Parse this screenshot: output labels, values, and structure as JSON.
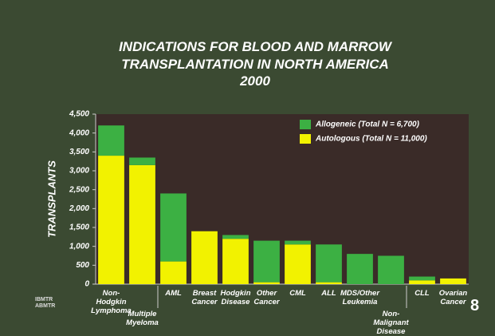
{
  "chart_data": {
    "type": "stacked-bar",
    "title": "INDICATIONS FOR BLOOD AND MARROW TRANSPLANTATION IN NORTH AMERICA",
    "subtitle": "2000",
    "y_label": "TRANSPLANTS",
    "categories": [
      "Non-Hodgkin Lymphoma",
      "Multiple Myeloma",
      "AML",
      "Breast Cancer",
      "Hodgkin Disease",
      "Other Cancer",
      "CML",
      "ALL",
      "MDS/Other Leukemia",
      "Non-Malignant Disease",
      "CLL",
      "Ovarian Cancer"
    ],
    "series": [
      {
        "name": "Allogeneic (Total N = 6,700)",
        "color": "#3cb043",
        "values": [
          800,
          200,
          1800,
          0,
          100,
          1100,
          100,
          1000,
          800,
          750,
          100,
          0
        ]
      },
      {
        "name": "Autologous (Total N = 11,000)",
        "color": "#f2f200",
        "values": [
          3400,
          3150,
          600,
          1400,
          1200,
          50,
          1050,
          50,
          0,
          0,
          100,
          150
        ]
      }
    ],
    "ylim": [
      0,
      4500
    ],
    "yticks": [
      0,
      500,
      {
        "value": 1000,
        "label": "1,000"
      },
      {
        "value": 1500,
        "label": "1,500"
      },
      {
        "value": 2000,
        "label": "2,000"
      },
      {
        "value": 2500,
        "label": "2,500"
      },
      {
        "value": 3000,
        "label": "3,000"
      },
      {
        "value": 3500,
        "label": "3,500"
      },
      {
        "value": 4000,
        "label": "4,000"
      },
      {
        "value": 4500,
        "label": "4,500"
      }
    ],
    "legend": "upper right",
    "plot_background": "#3a2b28"
  },
  "page_number": "8",
  "logo": "IBMTR ABMTR"
}
